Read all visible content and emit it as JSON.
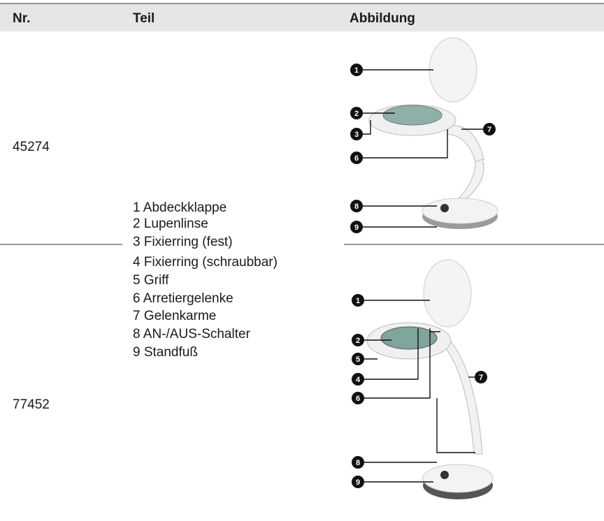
{
  "header": {
    "nr": "Nr.",
    "teil": "Teil",
    "abbildung": "Abbildung"
  },
  "rows": [
    {
      "nr": "45274",
      "callouts": [
        "1",
        "2",
        "3",
        "7",
        "6",
        "8",
        "9"
      ]
    },
    {
      "nr": "77452",
      "callouts": [
        "1",
        "2",
        "5",
        "4",
        "7",
        "6",
        "8",
        "9"
      ]
    }
  ],
  "parts": [
    "1 Abdeckklappe",
    "2 Lupenlinse",
    "3 Fixierring (fest)",
    "4 Fixierring (schraubbar)",
    "5 Griff",
    "6 Arretiergelenke",
    "7 Gelenkarme",
    "8 AN-/AUS-Schalter",
    "9 Standfuß"
  ]
}
